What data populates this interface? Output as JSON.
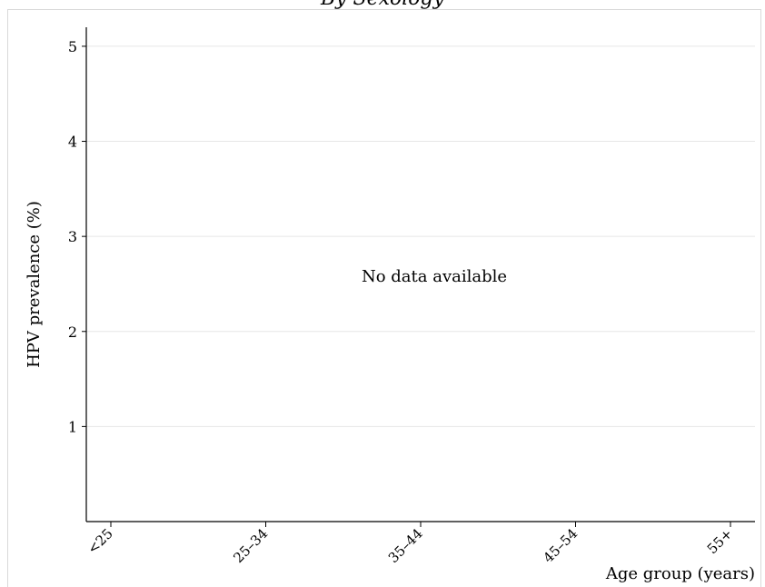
{
  "chart_data": {
    "type": "bar",
    "title": "By Sexology",
    "xlabel": "Age group (years)",
    "ylabel": "HPV prevalence (%)",
    "categories": [
      "<25",
      "25–34",
      "35–44",
      "45–54",
      "55+"
    ],
    "y_ticks": [
      1,
      2,
      3,
      4,
      5
    ],
    "ylim": [
      0,
      5.2
    ],
    "series": [],
    "grid": true,
    "annotation": "No data available"
  },
  "colors": {
    "grid": "#e6e6e6",
    "axis": "#000000",
    "frame": "#d9d9d9"
  }
}
